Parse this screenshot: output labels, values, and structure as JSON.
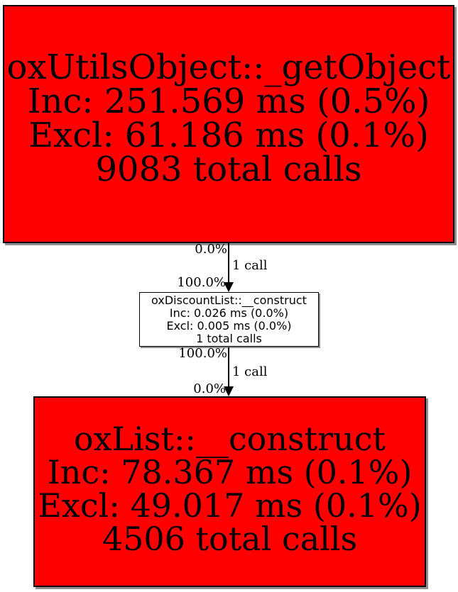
{
  "diagram": {
    "type": "profiler-call-graph",
    "background_color": "#ffffff",
    "colors": {
      "hot_node_fill": "#ff0000",
      "cold_node_fill": "#ffffff",
      "node_border": "#000000",
      "edge": "#000000",
      "shadow": "#8f8f8f"
    },
    "nodes": [
      {
        "id": "oxUtilsObject_getObject",
        "title": "oxUtilsObject::_getObject",
        "inc": "Inc: 251.569 ms (0.5%)",
        "excl": "Excl: 61.186 ms (0.1%)",
        "calls": "9083 total calls",
        "fill": "#ff0000"
      },
      {
        "id": "oxDiscountList_construct",
        "title": "oxDiscountList::__construct",
        "inc": "Inc: 0.026 ms (0.0%)",
        "excl": "Excl: 0.005 ms (0.0%)",
        "calls": "1 total calls",
        "fill": "#ffffff"
      },
      {
        "id": "oxList_construct",
        "title": "oxList::__construct",
        "inc": "Inc: 78.367 ms (0.1%)",
        "excl": "Excl: 49.017 ms (0.1%)",
        "calls": "4506 total calls",
        "fill": "#ff0000"
      }
    ],
    "edges": [
      {
        "from": "oxUtilsObject_getObject",
        "to": "oxDiscountList_construct",
        "source_pct": "0.0%",
        "calls": "1 call",
        "target_pct": "100.0%"
      },
      {
        "from": "oxDiscountList_construct",
        "to": "oxList_construct",
        "source_pct": "100.0%",
        "calls": "1 call",
        "target_pct": "0.0%"
      }
    ]
  }
}
